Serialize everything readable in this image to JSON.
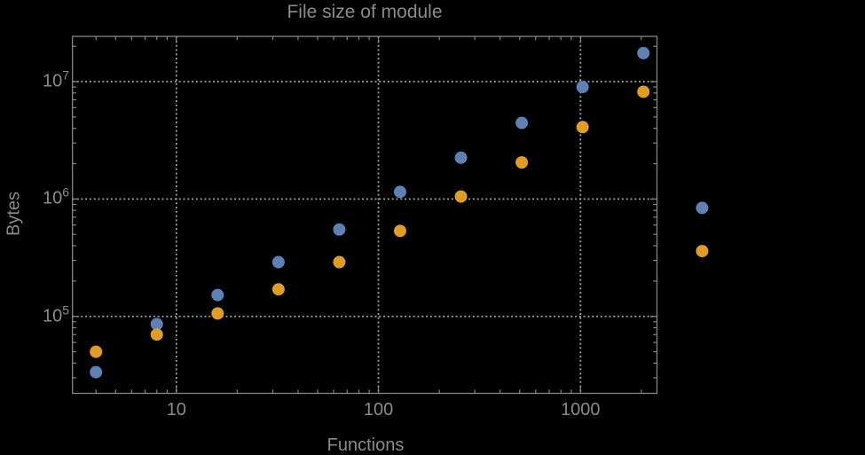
{
  "window": {
    "background": "#000000"
  },
  "chart_data": {
    "type": "scatter",
    "title": "File size of module",
    "xlabel": "Functions",
    "ylabel": "Bytes",
    "x_scale": "log",
    "y_scale": "log",
    "grid": "dotted",
    "legend": "none",
    "x": [
      4,
      8,
      16,
      32,
      64,
      128,
      256,
      512,
      1024,
      2048,
      4000
    ],
    "series": [
      {
        "name": "blue",
        "color": "#5e81b5",
        "values": [
          33500,
          86000,
          152000,
          290000,
          550000,
          1150000,
          2250000,
          4450000,
          9000000,
          17500000,
          840000
        ]
      },
      {
        "name": "orange",
        "color": "#e19c24",
        "values": [
          50000,
          70000,
          106000,
          170000,
          290000,
          535000,
          1050000,
          2050000,
          4100000,
          8200000,
          360000
        ]
      }
    ],
    "x_ticks": [
      {
        "value": 10,
        "label": "10"
      },
      {
        "value": 100,
        "label": "100"
      },
      {
        "value": 1000,
        "label": "1000"
      }
    ],
    "y_ticks": [
      {
        "value": 100000,
        "base": "10",
        "exponent": "5"
      },
      {
        "value": 1000000,
        "base": "10",
        "exponent": "6"
      },
      {
        "value": 10000000,
        "base": "10",
        "exponent": "7"
      }
    ],
    "xlim": [
      3.06,
      2390
    ],
    "ylim": [
      22100,
      24300000
    ],
    "frame_color": "#848484",
    "grid_color": "#a0a0a0",
    "text_color": "#8a8a8a"
  }
}
